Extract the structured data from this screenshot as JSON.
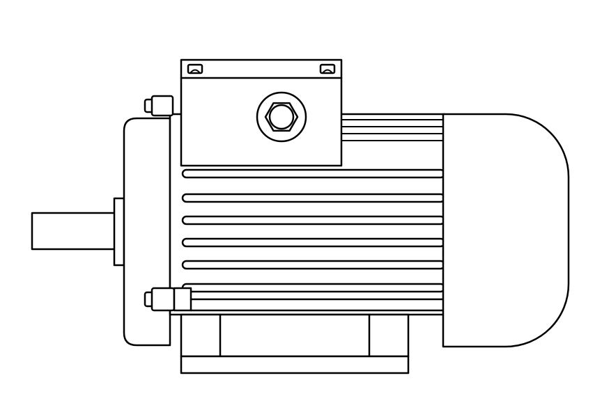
{
  "drawing": {
    "subject": "electric-motor",
    "stroke_color": "#000000",
    "fill_color": "#ffffff",
    "cooling_fin_count": 6
  }
}
